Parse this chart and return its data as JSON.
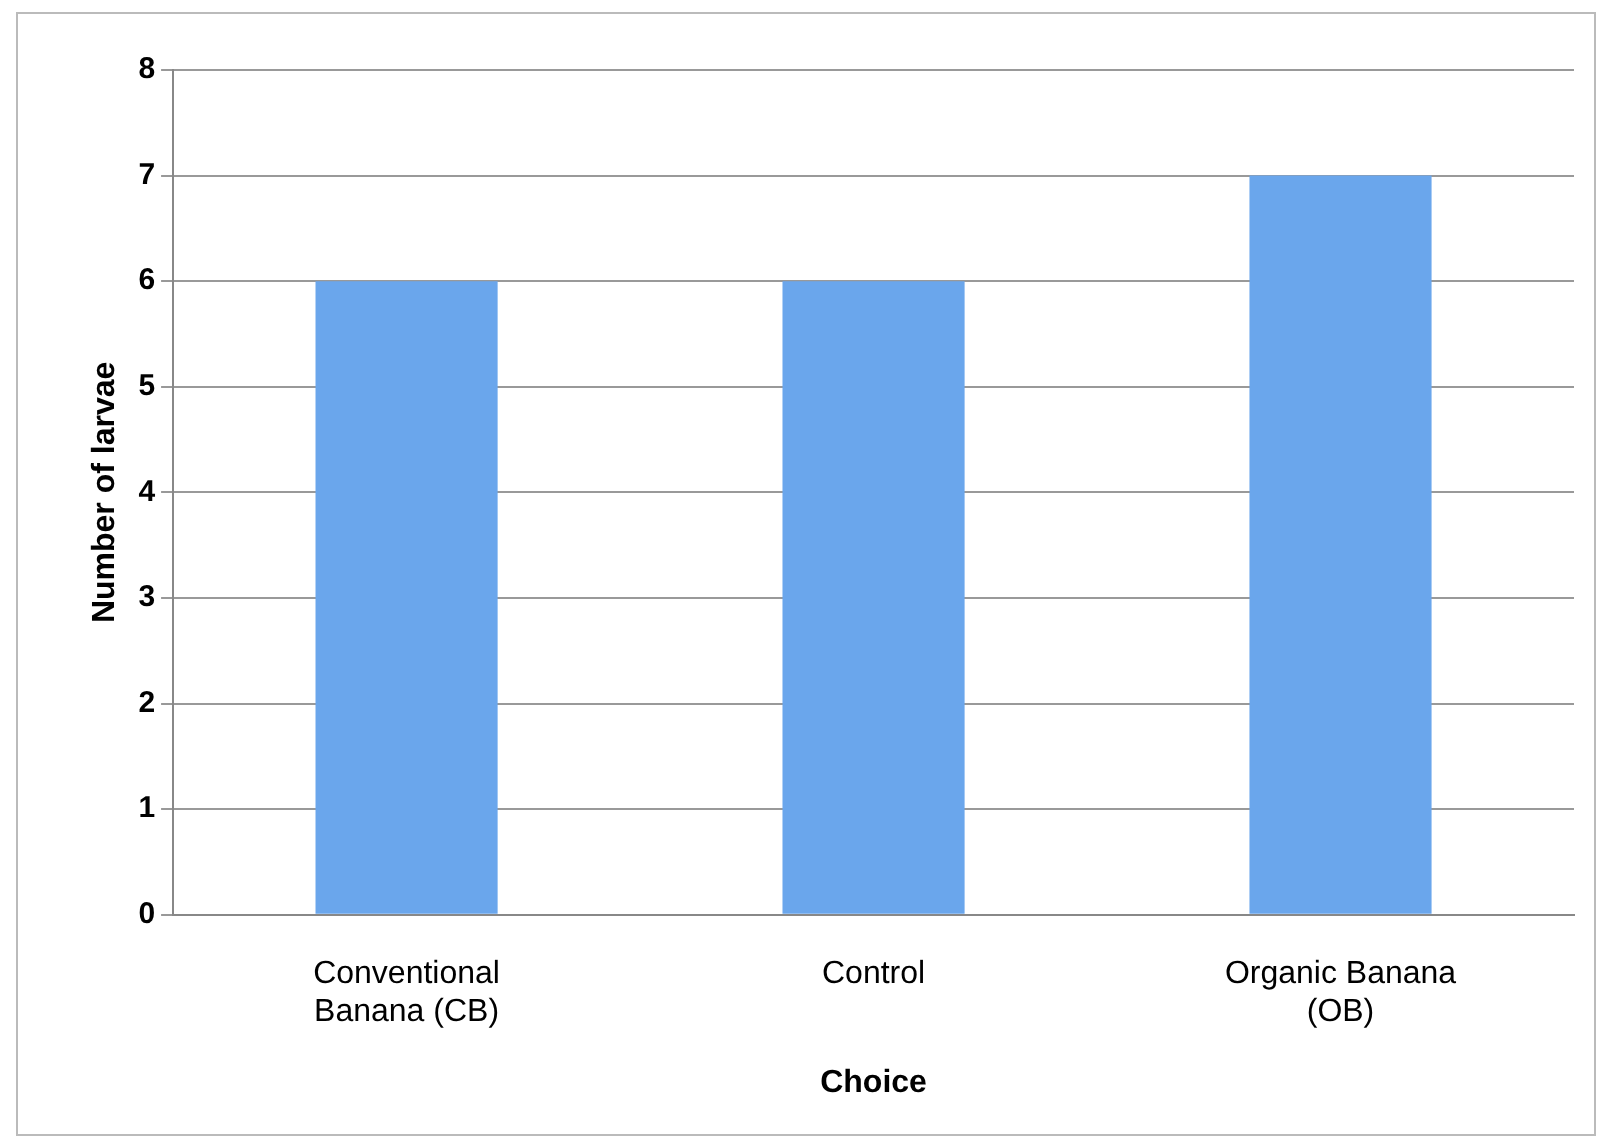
{
  "chart_data": {
    "type": "bar",
    "xlabel": "Choice",
    "ylabel": "Number of larvae",
    "categories": [
      "Conventional Banana (CB)",
      "Control",
      "Organic Banana (OB)"
    ],
    "values": [
      6,
      6,
      7
    ],
    "color": "#6aa6ec",
    "ylim": [
      0,
      8
    ],
    "yticks": [
      0,
      1,
      2,
      3,
      4,
      5,
      6,
      7,
      8
    ],
    "grid": "y",
    "legend": false
  }
}
